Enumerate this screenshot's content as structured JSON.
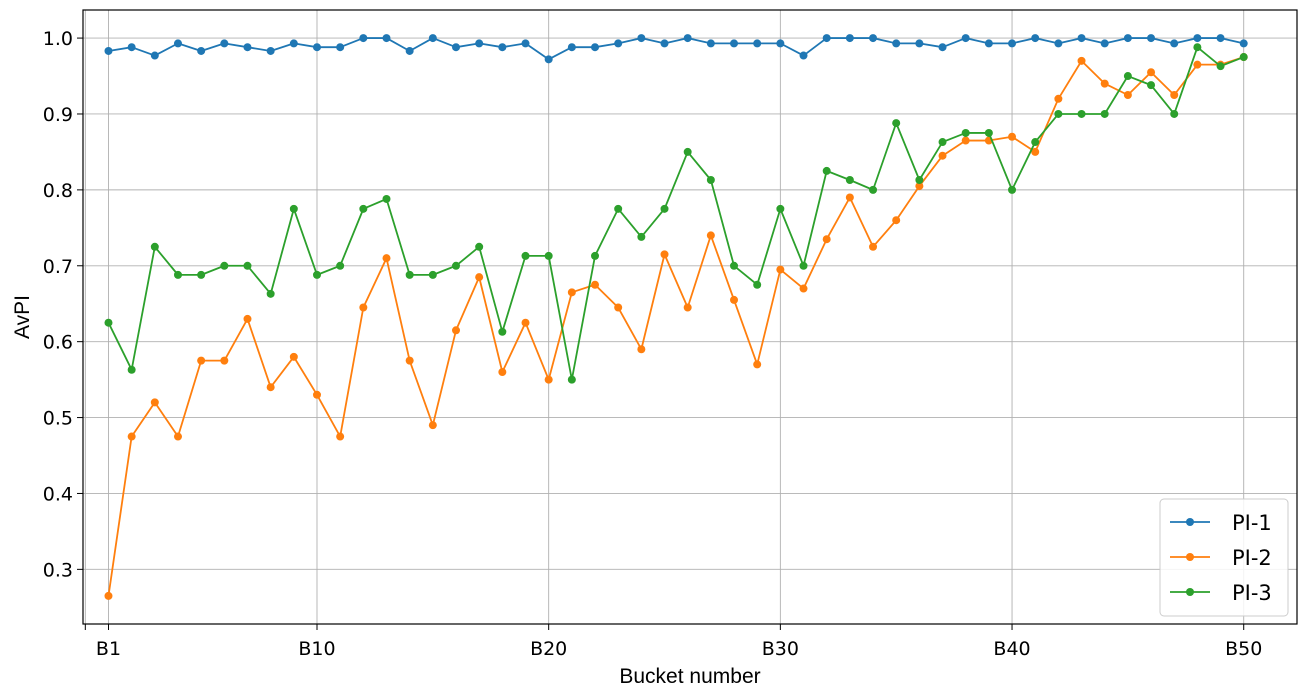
{
  "chart_data": {
    "type": "line",
    "title": "",
    "xlabel": "Bucket number",
    "ylabel": "AvPI",
    "x": [
      1,
      2,
      3,
      4,
      5,
      6,
      7,
      8,
      9,
      10,
      11,
      12,
      13,
      14,
      15,
      16,
      17,
      18,
      19,
      20,
      21,
      22,
      23,
      24,
      25,
      26,
      27,
      28,
      29,
      30,
      31,
      32,
      33,
      34,
      35,
      36,
      37,
      38,
      39,
      40,
      41,
      42,
      43,
      44,
      45,
      46,
      47,
      48,
      49,
      50
    ],
    "xticks": [
      1,
      10,
      20,
      30,
      40,
      50
    ],
    "xtick_labels": [
      "B1",
      "B10",
      "B20",
      "B30",
      "B40",
      "B50"
    ],
    "xlim": [
      -0.1,
      52.3
    ],
    "yticks": [
      0.3,
      0.4,
      0.5,
      0.6,
      0.7,
      0.8,
      0.9,
      1.0
    ],
    "ytick_labels": [
      "0.3",
      "0.4",
      "0.5",
      "0.6",
      "0.7",
      "0.8",
      "0.9",
      "1.0"
    ],
    "ylim": [
      0.228,
      1.037
    ],
    "grid": true,
    "legend_position": "bottom-right",
    "series": [
      {
        "name": "PI-1",
        "color": "#1f77b4",
        "values": [
          0.983,
          0.988,
          0.977,
          0.993,
          0.983,
          0.993,
          0.988,
          0.983,
          0.993,
          0.988,
          0.988,
          1.0,
          1.0,
          0.983,
          1.0,
          0.988,
          0.993,
          0.988,
          0.993,
          0.972,
          0.988,
          0.988,
          0.993,
          1.0,
          0.993,
          1.0,
          0.993,
          0.993,
          0.993,
          0.993,
          0.977,
          1.0,
          1.0,
          1.0,
          0.993,
          0.993,
          0.988,
          1.0,
          0.993,
          0.993,
          1.0,
          0.993,
          1.0,
          0.993,
          1.0,
          1.0,
          0.993,
          1.0,
          1.0,
          0.993
        ]
      },
      {
        "name": "PI-2",
        "color": "#ff7f0e",
        "values": [
          0.265,
          0.475,
          0.52,
          0.475,
          0.575,
          0.575,
          0.63,
          0.54,
          0.58,
          0.53,
          0.475,
          0.645,
          0.71,
          0.575,
          0.49,
          0.615,
          0.685,
          0.56,
          0.625,
          0.55,
          0.665,
          0.675,
          0.645,
          0.59,
          0.715,
          0.645,
          0.74,
          0.655,
          0.57,
          0.695,
          0.67,
          0.735,
          0.79,
          0.725,
          0.76,
          0.805,
          0.845,
          0.865,
          0.865,
          0.87,
          0.85,
          0.92,
          0.97,
          0.94,
          0.925,
          0.955,
          0.925,
          0.965,
          0.965,
          0.975
        ]
      },
      {
        "name": "PI-3",
        "color": "#2ca02c",
        "values": [
          0.625,
          0.563,
          0.725,
          0.688,
          0.688,
          0.7,
          0.7,
          0.663,
          0.775,
          0.688,
          0.7,
          0.775,
          0.788,
          0.688,
          0.688,
          0.7,
          0.725,
          0.613,
          0.713,
          0.713,
          0.55,
          0.713,
          0.775,
          0.738,
          0.775,
          0.85,
          0.813,
          0.7,
          0.675,
          0.775,
          0.7,
          0.825,
          0.813,
          0.8,
          0.888,
          0.813,
          0.863,
          0.875,
          0.875,
          0.8,
          0.863,
          0.9,
          0.9,
          0.9,
          0.95,
          0.938,
          0.9,
          0.988,
          0.963,
          0.975
        ]
      }
    ]
  }
}
